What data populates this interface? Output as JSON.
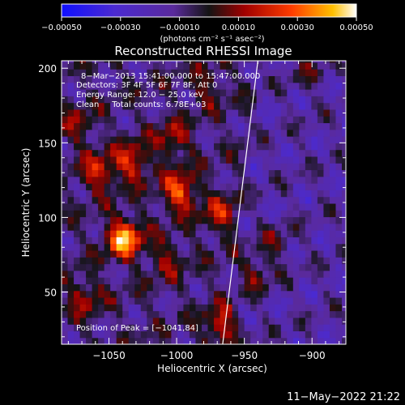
{
  "chart_data": {
    "type": "heatmap",
    "title": "Reconstructed RHESSI Image",
    "xlabel": "Heliocentric X (arcsec)",
    "ylabel": "Heliocentric Y (arcsec)",
    "xlim": [
      -1085,
      -875
    ],
    "ylim": [
      15,
      205
    ],
    "xticks": [
      -1050,
      -1000,
      -950,
      -900
    ],
    "xtick_labels": [
      "−1050",
      "−1000",
      "−950",
      "−900"
    ],
    "yticks": [
      50,
      100,
      150,
      200
    ],
    "ytick_labels": [
      "50",
      "100",
      "150",
      "200"
    ],
    "colorbar": {
      "range": [
        -0.0005,
        0.0005
      ],
      "ticks": [
        -0.0005,
        -0.0003,
        -0.0001,
        0.0001,
        0.0003,
        0.0005
      ],
      "tick_labels": [
        "−0.00050",
        "−0.00030",
        "−0.00010",
        "0.00010",
        "0.00030",
        "0.00050"
      ],
      "units_label": "(photons cm⁻² s⁻¹ asec⁻²)"
    },
    "annotations": {
      "time_range": "8−Mar−2013 15:41:00.000 to 15:47:00.000",
      "detectors": "Detectors: 3F 4F 5F 6F 7F 8F, Att 0",
      "energy_range": "Energy Range: 12.0 − 25.0 keV",
      "clean_counts": "Clean     Total counts: 6.78E+03",
      "peak_position": "Position of Peak = [−1041,84]"
    },
    "peak": {
      "x": -1041,
      "y": 84,
      "value": 0.0005
    },
    "limb_line": [
      [
        -966,
        15
      ],
      [
        -940,
        205
      ]
    ],
    "emission_hotspots": [
      {
        "x": -1041,
        "y": 84,
        "value": 0.0005
      },
      {
        "x": -1000,
        "y": 115,
        "value": 0.00038
      },
      {
        "x": -1035,
        "y": 135,
        "value": 0.0003
      },
      {
        "x": -1060,
        "y": 128,
        "value": 0.00028
      },
      {
        "x": -1005,
        "y": 150,
        "value": 0.00022
      },
      {
        "x": -970,
        "y": 100,
        "value": 0.00024
      },
      {
        "x": -1070,
        "y": 45,
        "value": 0.0002
      },
      {
        "x": -968,
        "y": 25,
        "value": 0.0003
      },
      {
        "x": -1010,
        "y": 70,
        "value": 0.00018
      },
      {
        "x": -945,
        "y": 60,
        "value": 0.0002
      },
      {
        "x": -930,
        "y": 80,
        "value": 0.00015
      },
      {
        "x": -905,
        "y": 195,
        "value": 0.00012
      },
      {
        "x": -1075,
        "y": 160,
        "value": 0.00016
      },
      {
        "x": -980,
        "y": 185,
        "value": 0.00015
      }
    ]
  },
  "footer": {
    "timestamp": "11−May−2022 21:22"
  }
}
